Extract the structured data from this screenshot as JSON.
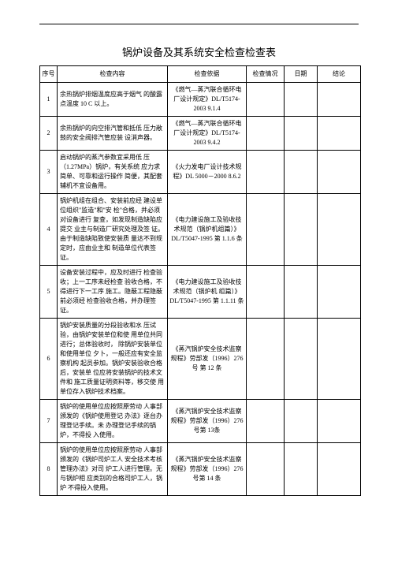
{
  "title": "锅炉设备及其系统安全检查检查表",
  "headers": {
    "seq": "序号",
    "content": "检查内容",
    "basis": "检查依据",
    "situation": "检查情况",
    "date": "日期",
    "conclusion": "结论"
  },
  "rows": [
    {
      "seq": "1",
      "content": "余热锅炉排烟温度应高于烟气 的酸露点温度 10 C 以上。",
      "basis": "《燃气—蒸汽联合循环电厂设计规定》DL/T5174-2003 9.1.4"
    },
    {
      "seq": "2",
      "content": "余热锅炉的向空排汽管和抵低 压力敞鼓的安全阀排汽管应装 设消声器。",
      "basis": "《燃气—蒸汽联合循环电厂设计规定》DL/T5174-2003 9.4.2"
    },
    {
      "seq": "3",
      "content": "启动锅炉的蒸汽参数宜采用低 压（1.27MPa）锅炉，有关系统 应力求简单、可靠和运行操作 简便，其配套辅机不宜设备用。",
      "basis": "《火力发电厂设计技术规程》DL 5000－2000 8.6.2"
    },
    {
      "seq": "4",
      "content": "锅炉机组在组合、安装前应经 建设单位组织\"监造\"和\"安 检\"合格，并必须对设备进行 复查，如发现制造缺陷应提交 业主与制造厂研究处理及签 证。由于制造缺陷致使安装质 量达不到规定时，应由业主和 制造单位代表签证。",
      "basis": "《电力建设施工及验收技术规范（锅炉机组篇）》DL/T5047-1995 第 1.1.6 条"
    },
    {
      "seq": "5",
      "content": "设备安装过程中，应及时进行 检查验收；上一工序未经检查 验收合格，不得进行下一工序 施工。隐蔽工程隐蔽前必须经 检查验收合格，并办理签证。",
      "basis": "《电力建设施工及验收技术规范（锅炉机 组篇）》DL/T5047-1995 第 1.1.11 条"
    },
    {
      "seq": "6",
      "content": "锅炉安装质量的分段验收和水 压试验，由锅炉安装单位和使 用单位共同进行；总体验收时， 除锅炉安装单位和使用单位 夕卜，一般还应有安全监察机构 起员参加。锅炉安装验收合格后，安装单 位应将安装锅炉的技术文件和 施工质量证明资料等，移交使 用单位存入锅炉技术档案。",
      "basis": "《蒸汽锅炉安全技术监察规程》劳部发（1996）276 号 第 12 条"
    },
    {
      "seq": "7",
      "content": "锅炉的使用单位应按照原劳动 人事部颁发的《锅炉使用登记 办法》逐台办理登记手续。未 办理登记手续的锅炉，不得投 入使用。",
      "basis": "《蒸汽锅炉安全技术监察规程》劳部发（1996）276 号第 13条"
    },
    {
      "seq": "8",
      "content": "锅炉的使用单位应按照原劳动 人事部颁发的《锅炉司炉工人 安全技术考核管理办法》对司 炉工人进行管理。无与锅炉相 应类别的合格司炉工人，锅炉 不得投入使用。",
      "basis": "《蒸汽锅炉安全技术监察规程》劳部发（1996）276 号第 14 条"
    }
  ]
}
